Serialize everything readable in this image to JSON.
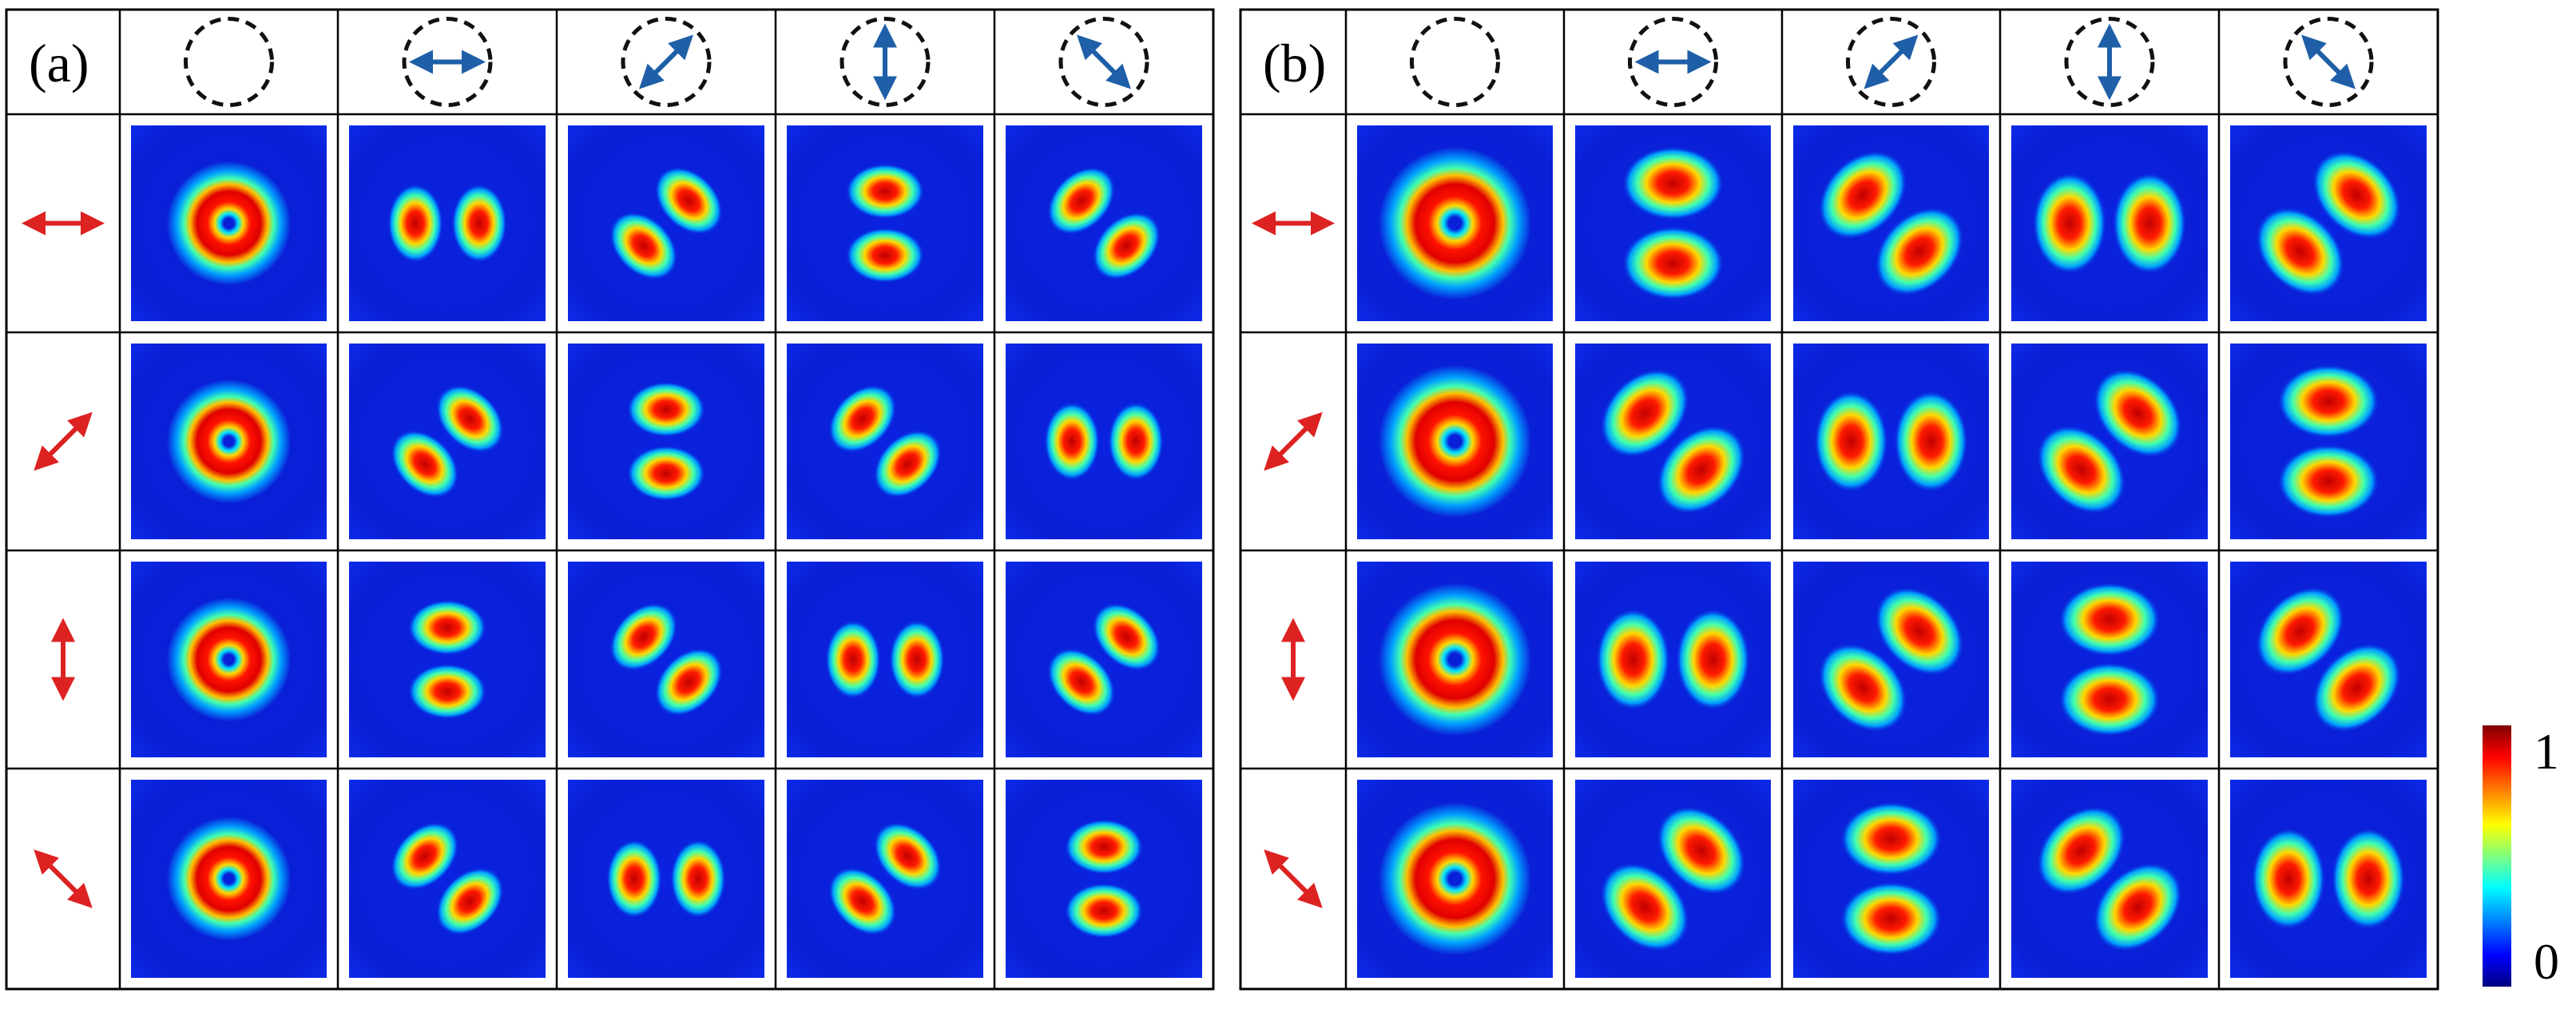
{
  "figure": {
    "panels": [
      {
        "label": "(a)",
        "analyzer_angles_deg": [
          0,
          45,
          90,
          135
        ],
        "ring_cell": "donut",
        "lobe_angles_deg": [
          [
            0,
            45,
            90,
            135
          ],
          [
            45,
            90,
            135,
            0
          ],
          [
            90,
            135,
            0,
            45
          ],
          [
            135,
            0,
            45,
            90
          ]
        ]
      },
      {
        "label": "(b)",
        "analyzer_angles_deg": [
          0,
          45,
          90,
          135
        ],
        "ring_cell": "donut",
        "lobe_angles_deg": [
          [
            90,
            135,
            0,
            45
          ],
          [
            135,
            0,
            45,
            90
          ],
          [
            0,
            45,
            90,
            135
          ],
          [
            45,
            90,
            135,
            0
          ]
        ]
      }
    ],
    "header_polarizer_angles_deg": [
      null,
      0,
      45,
      90,
      135
    ],
    "colorbar": {
      "max_label": "1",
      "min_label": "0",
      "colormap": "jet",
      "stops": [
        "#000080",
        "#0000ff",
        "#00ffff",
        "#ffff00",
        "#ff0000",
        "#800000"
      ]
    },
    "colors": {
      "header_arrow": "#1f5fa8",
      "row_arrow": "#dd2222",
      "dashed_circle": "#111111",
      "background_blue": "#0a1fd8"
    }
  }
}
